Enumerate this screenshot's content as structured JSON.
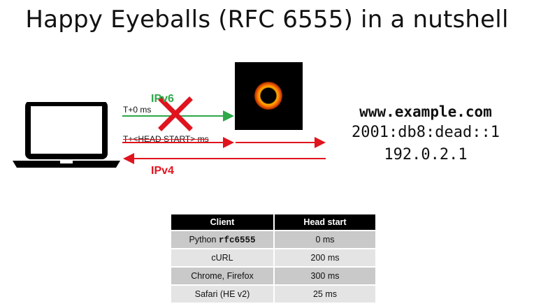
{
  "slide": {
    "title": "Happy Eyeballs (RFC 6555) in a nutshell"
  },
  "diagram": {
    "ipv6_label": "IPv6",
    "ipv4_label": "IPv4",
    "t0_label": "T+0 ms",
    "head_start_label": "T+<HEAD START> ms",
    "hostname": "www.example.com",
    "ipv6_address": "2001:db8:dead::1",
    "ipv4_address": "192.0.2.1",
    "icons": [
      "laptop-icon",
      "black-hole-image",
      "red-x-icon"
    ],
    "colors": {
      "ipv6": "#2ea84a",
      "ipv4": "#e0141e"
    }
  },
  "table": {
    "headers": [
      "Client",
      "Head start"
    ],
    "rows": [
      {
        "client_prefix": "Python ",
        "client_code": "rfc6555",
        "head_start": "0 ms"
      },
      {
        "client_prefix": "cURL",
        "client_code": "",
        "head_start": "200 ms"
      },
      {
        "client_prefix": "Chrome, Firefox",
        "client_code": "",
        "head_start": "300 ms"
      },
      {
        "client_prefix": "Safari (HE v2)",
        "client_code": "",
        "head_start": "25 ms"
      }
    ]
  }
}
